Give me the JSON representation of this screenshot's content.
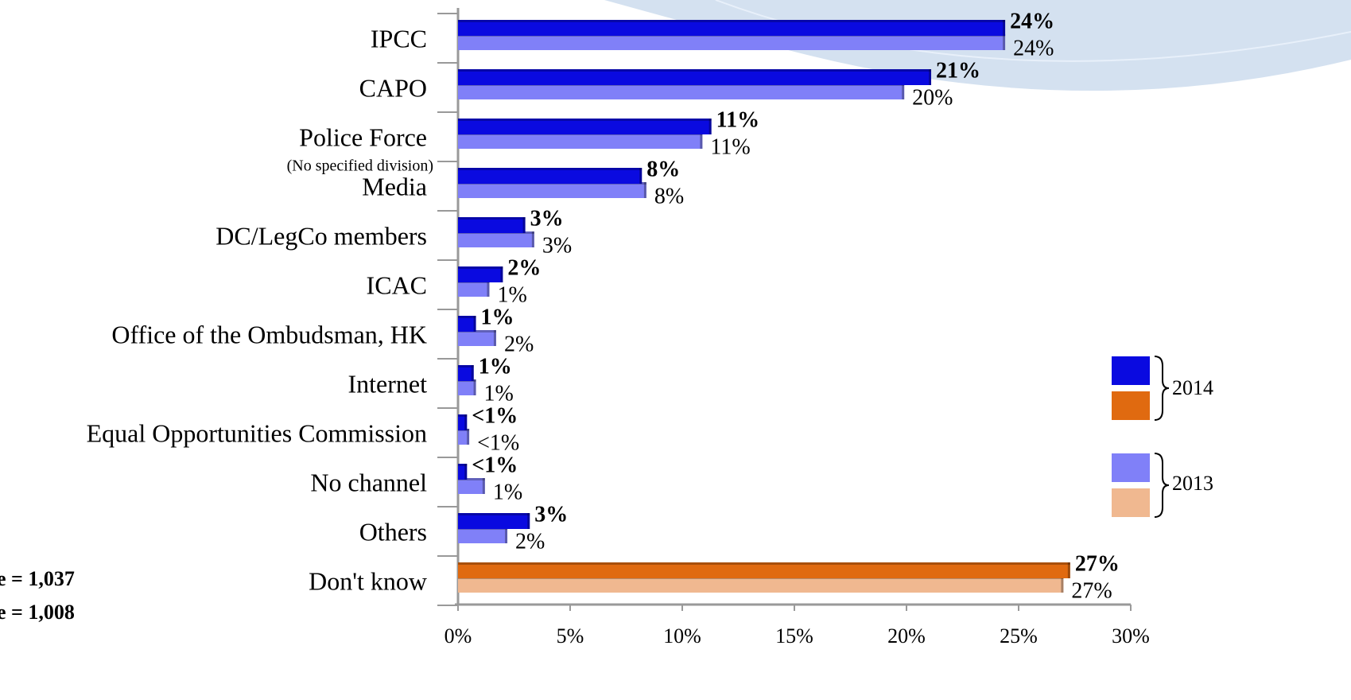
{
  "chart_data": {
    "type": "bar",
    "orientation": "horizontal",
    "categories": [
      "IPCC",
      "CAPO",
      "Police Force",
      "Media",
      "DC/LegCo members",
      "ICAC",
      "Office of the Ombudsman, HK",
      "Internet",
      "Equal Opportunities Commission",
      "No channel",
      "Others",
      "Don't know"
    ],
    "category_note": {
      "category": 2,
      "text": "(No specified division)"
    },
    "series": [
      {
        "name": "2014",
        "color": "#0a0ae0",
        "alt_color": "#e06a10",
        "alt_color_at": [
          11
        ],
        "bold_labels": true,
        "values": [
          24.4,
          21.1,
          11.3,
          8.2,
          3.0,
          2.0,
          0.8,
          0.7,
          0.4,
          0.4,
          3.2,
          27.3
        ],
        "value_labels": [
          "24%",
          "21%",
          "11%",
          "8%",
          "3%",
          "2%",
          "1%",
          "1%",
          "<1%",
          "<1%",
          "3%",
          "27%"
        ]
      },
      {
        "name": "2013",
        "color": "#8080f8",
        "alt_color": "#f0b890",
        "alt_color_at": [
          11
        ],
        "bold_labels": false,
        "values": [
          24.4,
          19.9,
          10.9,
          8.4,
          3.4,
          1.4,
          1.7,
          0.8,
          0.5,
          1.2,
          2.2,
          27.0
        ],
        "value_labels": [
          "24%",
          "20%",
          "11%",
          "8%",
          "3%",
          "1%",
          "2%",
          "1%",
          "<1%",
          "1%",
          "2%",
          "27%"
        ]
      }
    ],
    "xlim": [
      0,
      30
    ],
    "xticks": [
      {
        "value": 0,
        "label": "0%"
      },
      {
        "value": 5,
        "label": "5%"
      },
      {
        "value": 10,
        "label": "10%"
      },
      {
        "value": 15,
        "label": "15%"
      },
      {
        "value": 20,
        "label": "20%"
      },
      {
        "value": 25,
        "label": "25%"
      },
      {
        "value": 30,
        "label": "30%"
      }
    ],
    "notes": [
      "e = 1,037",
      "e = 1,008"
    ]
  }
}
